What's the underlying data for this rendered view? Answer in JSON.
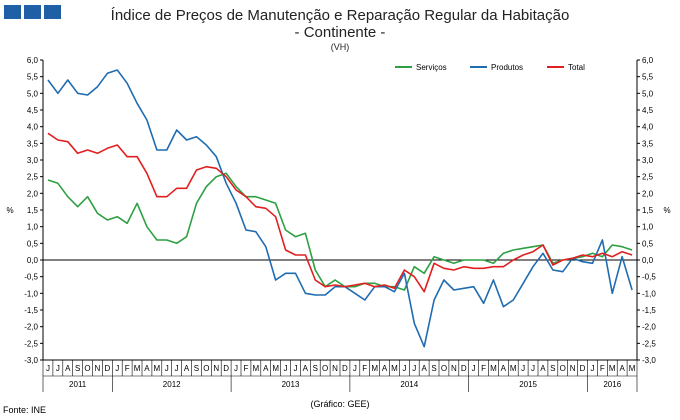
{
  "header": {
    "title": "Índice de Preços de Manutenção e Reparação Regular da Habitação",
    "subtitle": "- Continente -",
    "unit_note": "(VH)"
  },
  "footer": {
    "source": "Fonte: INE",
    "credit": "(Gráfico: GEE)"
  },
  "colors": {
    "servicos": "#2ea043",
    "produtos": "#1f6cb0",
    "total": "#e02020",
    "logo": "#1f5fa6"
  },
  "chart_data": {
    "type": "line",
    "ylabel": "%",
    "ylabel_right": "%",
    "ylim": [
      -3.0,
      6.0
    ],
    "ytick_step": 0.5,
    "grid": false,
    "legend_position": "top-right",
    "x": [
      "J",
      "J",
      "A",
      "S",
      "O",
      "N",
      "D",
      "J",
      "F",
      "M",
      "A",
      "M",
      "J",
      "J",
      "A",
      "S",
      "O",
      "N",
      "D",
      "J",
      "F",
      "M",
      "A",
      "M",
      "J",
      "J",
      "A",
      "S",
      "O",
      "N",
      "D",
      "J",
      "F",
      "M",
      "A",
      "M",
      "J",
      "J",
      "A",
      "S",
      "O",
      "N",
      "D",
      "J",
      "F",
      "M",
      "A",
      "M",
      "J",
      "J",
      "A",
      "S",
      "O",
      "N",
      "D",
      "J",
      "F",
      "M",
      "A",
      "M"
    ],
    "years": [
      {
        "label": "2011",
        "start": 0,
        "end": 7
      },
      {
        "label": "2012",
        "start": 7,
        "end": 19
      },
      {
        "label": "2013",
        "start": 19,
        "end": 31
      },
      {
        "label": "2014",
        "start": 31,
        "end": 43
      },
      {
        "label": "2015",
        "start": 43,
        "end": 55
      },
      {
        "label": "2016",
        "start": 55,
        "end": 60
      }
    ],
    "series": [
      {
        "name": "Serviços",
        "color": "#2ea043",
        "values": [
          2.4,
          2.3,
          1.9,
          1.6,
          1.9,
          1.4,
          1.2,
          1.3,
          1.1,
          1.7,
          1.0,
          0.6,
          0.6,
          0.5,
          0.7,
          1.7,
          2.2,
          2.5,
          2.6,
          2.2,
          1.9,
          1.9,
          1.8,
          1.7,
          0.9,
          0.7,
          0.8,
          -0.3,
          -0.8,
          -0.6,
          -0.8,
          -0.8,
          -0.7,
          -0.7,
          -0.8,
          -0.8,
          -0.9,
          -0.2,
          -0.4,
          0.1,
          0.0,
          -0.1,
          0.0,
          0.0,
          0.0,
          -0.1,
          0.2,
          0.3,
          0.35,
          0.4,
          0.45,
          -0.1,
          0.0,
          0.05,
          0.1,
          0.2,
          0.1,
          0.45,
          0.4,
          0.3
        ]
      },
      {
        "name": "Produtos",
        "color": "#1f6cb0",
        "values": [
          5.4,
          5.0,
          5.4,
          5.0,
          4.95,
          5.2,
          5.6,
          5.7,
          5.3,
          4.7,
          4.2,
          3.3,
          3.3,
          3.9,
          3.6,
          3.7,
          3.45,
          3.1,
          2.3,
          1.7,
          0.9,
          0.85,
          0.4,
          -0.6,
          -0.4,
          -0.4,
          -1.0,
          -1.05,
          -1.05,
          -0.8,
          -0.8,
          -1.0,
          -1.2,
          -0.8,
          -0.8,
          -0.95,
          -0.4,
          -1.9,
          -2.6,
          -1.2,
          -0.6,
          -0.9,
          -0.85,
          -0.8,
          -1.3,
          -0.6,
          -1.4,
          -1.2,
          -0.7,
          -0.2,
          0.2,
          -0.3,
          -0.35,
          0.05,
          -0.05,
          -0.1,
          0.6,
          -1.0,
          0.1,
          -0.9
        ]
      },
      {
        "name": "Total",
        "color": "#e02020",
        "values": [
          3.8,
          3.6,
          3.55,
          3.2,
          3.3,
          3.2,
          3.35,
          3.45,
          3.1,
          3.1,
          2.6,
          1.9,
          1.9,
          2.15,
          2.15,
          2.7,
          2.8,
          2.75,
          2.5,
          2.1,
          1.9,
          1.6,
          1.55,
          1.3,
          0.3,
          0.15,
          0.15,
          -0.6,
          -0.8,
          -0.75,
          -0.8,
          -0.75,
          -0.7,
          -0.8,
          -0.75,
          -0.85,
          -0.3,
          -0.5,
          -0.95,
          -0.1,
          -0.25,
          -0.3,
          -0.2,
          -0.25,
          -0.25,
          -0.2,
          -0.2,
          0.0,
          0.15,
          0.25,
          0.45,
          -0.15,
          0.0,
          0.05,
          0.15,
          0.1,
          0.2,
          0.1,
          0.25,
          0.15
        ]
      }
    ]
  }
}
